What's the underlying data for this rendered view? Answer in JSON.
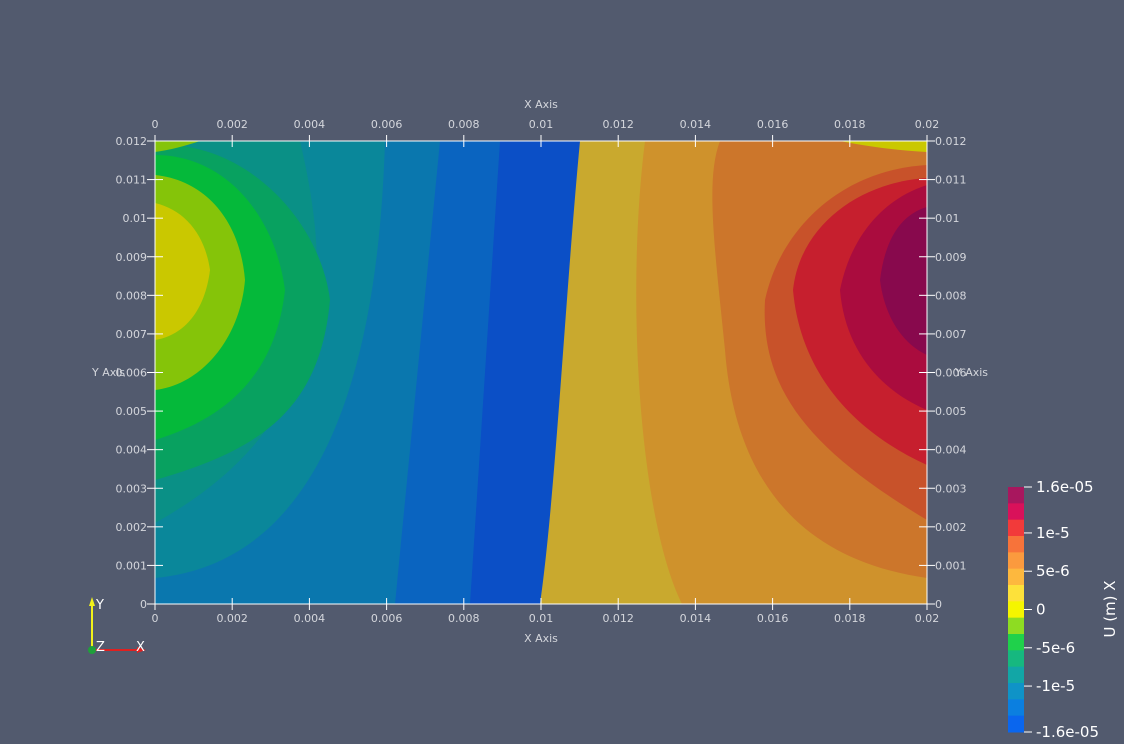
{
  "view": {
    "background": "#525a6e",
    "field_name": "U (m) X",
    "representation": "contour bands on surface with cube axes"
  },
  "axes": {
    "x_title_top": "X Axis",
    "x_title_bottom": "X Axis",
    "y_title_left": "Y Axis",
    "y_title_right": "Y Axis",
    "x_range": [
      0,
      0.02
    ],
    "y_range": [
      0,
      0.012
    ],
    "x_ticks": [
      "0",
      "0.002",
      "0.004",
      "0.006",
      "0.008",
      "0.01",
      "0.012",
      "0.014",
      "0.016",
      "0.018",
      "0.02"
    ],
    "y_ticks": [
      "0",
      "0.001",
      "0.002",
      "0.003",
      "0.004",
      "0.005",
      "0.006",
      "0.007",
      "0.008",
      "0.009",
      "0.01",
      "0.011",
      "0.012"
    ]
  },
  "orientation_axes": {
    "y": "Y",
    "z": "Z",
    "x": "X"
  },
  "colorbar": {
    "title": "U (m) X",
    "range": [
      -1.6e-05,
      1.6e-05
    ],
    "labels": [
      {
        "text": "1.6e-05",
        "value": 1.6e-05
      },
      {
        "text": "1e-5",
        "value": 1e-05
      },
      {
        "text": "5e-6",
        "value": 5e-06
      },
      {
        "text": "0",
        "value": 0
      },
      {
        "text": "-5e-6",
        "value": -5e-06
      },
      {
        "text": "-1e-5",
        "value": -1e-05
      },
      {
        "text": "-1.6e-05",
        "value": -1.6e-05
      }
    ],
    "bands_top_to_bottom": [
      "#a8175e",
      "#d9115a",
      "#f23a3a",
      "#f7733a",
      "#fb9a3e",
      "#fdb83e",
      "#fde13a",
      "#f5f500",
      "#8edc22",
      "#1fd14b",
      "#16b87f",
      "#12a6a6",
      "#0f93c7",
      "#0b7fe0",
      "#0a66ee"
    ]
  },
  "bands": [
    {
      "name": "band-1",
      "color": "#0b4fc6"
    },
    {
      "name": "band-2",
      "color": "#0a64c0"
    },
    {
      "name": "band-3",
      "color": "#0a77ae"
    },
    {
      "name": "band-4",
      "color": "#0a879a"
    },
    {
      "name": "band-5",
      "color": "#0a9086"
    },
    {
      "name": "band-6",
      "color": "#08a160"
    },
    {
      "name": "band-7",
      "color": "#05b93a"
    },
    {
      "name": "band-8",
      "color": "#85c409"
    },
    {
      "name": "band-9",
      "color": "#cac800"
    },
    {
      "name": "band-10",
      "color": "#c9a92e"
    },
    {
      "name": "band-11",
      "color": "#cf922c"
    },
    {
      "name": "band-12",
      "color": "#cc762b"
    },
    {
      "name": "band-13",
      "color": "#c8522a"
    },
    {
      "name": "band-14",
      "color": "#c61f2e"
    },
    {
      "name": "band-15",
      "color": "#aa0c3e"
    },
    {
      "name": "band-16",
      "color": "#88094d"
    }
  ]
}
